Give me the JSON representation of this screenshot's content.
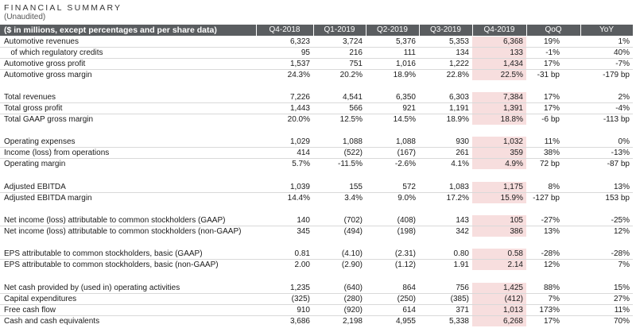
{
  "title": "FINANCIAL SUMMARY",
  "subtitle": "(Unaudited)",
  "header": {
    "label": "($ in millions, except percentages and per share data)",
    "columns": [
      "Q4-2018",
      "Q1-2019",
      "Q2-2019",
      "Q3-2019",
      "Q4-2019",
      "QoQ",
      "YoY"
    ]
  },
  "groups": [
    [
      {
        "label": "Automotive revenues",
        "values": [
          "6,323",
          "3,724",
          "5,376",
          "5,353",
          "6,368",
          "19%",
          "1%"
        ]
      },
      {
        "label": "   of which regulatory credits",
        "values": [
          "95",
          "216",
          "111",
          "134",
          "133",
          "-1%",
          "40%"
        ]
      },
      {
        "label": "Automotive gross profit",
        "values": [
          "1,537",
          "751",
          "1,016",
          "1,222",
          "1,434",
          "17%",
          "-7%"
        ]
      },
      {
        "label": "Automotive gross margin",
        "values": [
          "24.3%",
          "20.2%",
          "18.9%",
          "22.8%",
          "22.5%",
          "-31 bp",
          "-179 bp"
        ]
      }
    ],
    [
      {
        "label": "Total revenues",
        "values": [
          "7,226",
          "4,541",
          "6,350",
          "6,303",
          "7,384",
          "17%",
          "2%"
        ]
      },
      {
        "label": "Total gross profit",
        "values": [
          "1,443",
          "566",
          "921",
          "1,191",
          "1,391",
          "17%",
          "-4%"
        ]
      },
      {
        "label": "Total GAAP gross margin",
        "values": [
          "20.0%",
          "12.5%",
          "14.5%",
          "18.9%",
          "18.8%",
          "-6 bp",
          "-113 bp"
        ]
      }
    ],
    [
      {
        "label": "Operating expenses",
        "values": [
          "1,029",
          "1,088",
          "1,088",
          "930",
          "1,032",
          "11%",
          "0%"
        ]
      },
      {
        "label": "Income (loss) from operations",
        "values": [
          "414",
          "(522)",
          "(167)",
          "261",
          "359",
          "38%",
          "-13%"
        ]
      },
      {
        "label": "Operating margin",
        "values": [
          "5.7%",
          "-11.5%",
          "-2.6%",
          "4.1%",
          "4.9%",
          "72 bp",
          "-87 bp"
        ]
      }
    ],
    [
      {
        "label": "Adjusted EBITDA",
        "values": [
          "1,039",
          "155",
          "572",
          "1,083",
          "1,175",
          "8%",
          "13%"
        ]
      },
      {
        "label": "Adjusted EBITDA margin",
        "values": [
          "14.4%",
          "3.4%",
          "9.0%",
          "17.2%",
          "15.9%",
          "-127 bp",
          "153 bp"
        ]
      }
    ],
    [
      {
        "label": "Net income (loss) attributable to common stockholders (GAAP)",
        "values": [
          "140",
          "(702)",
          "(408)",
          "143",
          "105",
          "-27%",
          "-25%"
        ]
      },
      {
        "label": "Net income (loss) attributable to common stockholders (non-GAAP)",
        "values": [
          "345",
          "(494)",
          "(198)",
          "342",
          "386",
          "13%",
          "12%"
        ]
      }
    ],
    [
      {
        "label": "EPS attributable to common stockholders, basic (GAAP)",
        "values": [
          "0.81",
          "(4.10)",
          "(2.31)",
          "0.80",
          "0.58",
          "-28%",
          "-28%"
        ]
      },
      {
        "label": "EPS attributable to common stockholders, basic (non-GAAP)",
        "values": [
          "2.00",
          "(2.90)",
          "(1.12)",
          "1.91",
          "2.14",
          "12%",
          "7%"
        ]
      }
    ],
    [
      {
        "label": "Net cash provided by (used in) operating activities",
        "values": [
          "1,235",
          "(640)",
          "864",
          "756",
          "1,425",
          "88%",
          "15%"
        ]
      },
      {
        "label": "Capital expenditures",
        "values": [
          "(325)",
          "(280)",
          "(250)",
          "(385)",
          "(412)",
          "7%",
          "27%"
        ]
      },
      {
        "label": "Free cash flow",
        "values": [
          "910",
          "(920)",
          "614",
          "371",
          "1,013",
          "173%",
          "11%"
        ]
      },
      {
        "label": "Cash and cash equivalents",
        "values": [
          "3,686",
          "2,198",
          "4,955",
          "5,338",
          "6,268",
          "17%",
          "70%"
        ]
      }
    ]
  ],
  "colors": {
    "header_bg": "#5a5d60",
    "highlight_bg": "#f7dede",
    "separator": "#d9d9d9"
  }
}
